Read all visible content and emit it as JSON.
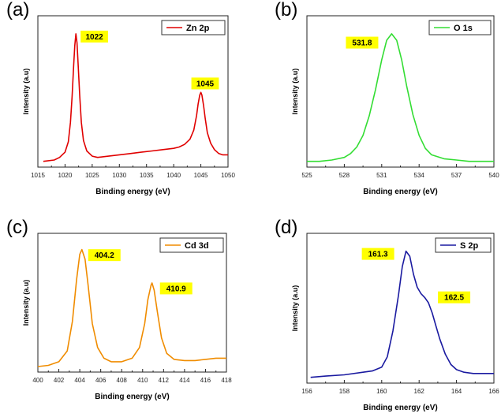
{
  "chart_data": [
    {
      "panel": "(a)",
      "type": "line",
      "title": "",
      "xlabel": "Binding energy (eV)",
      "ylabel": "Intensity (a.u)",
      "xlim": [
        1015,
        1050
      ],
      "xticks": [
        1015,
        1020,
        1025,
        1030,
        1035,
        1040,
        1045,
        1050
      ],
      "grid": false,
      "legend_position": "top-right",
      "series": [
        {
          "name": "Zn 2p",
          "color": "#e00000",
          "x": [
            1016,
            1018,
            1019,
            1020,
            1020.6,
            1021.0,
            1021.3,
            1021.6,
            1021.8,
            1022.0,
            1022.2,
            1022.4,
            1022.7,
            1023.0,
            1023.4,
            1024.0,
            1025,
            1026,
            1028,
            1030,
            1032,
            1034,
            1036,
            1038,
            1040,
            1041,
            1042,
            1043,
            1043.7,
            1044.2,
            1044.5,
            1044.8,
            1045.0,
            1045.2,
            1045.5,
            1045.8,
            1046.2,
            1046.8,
            1047.5,
            1048.3,
            1049,
            1050
          ],
          "y": [
            0.02,
            0.03,
            0.05,
            0.09,
            0.17,
            0.32,
            0.52,
            0.76,
            0.91,
            1.0,
            0.93,
            0.77,
            0.53,
            0.32,
            0.18,
            0.1,
            0.06,
            0.05,
            0.06,
            0.07,
            0.08,
            0.09,
            0.1,
            0.11,
            0.12,
            0.13,
            0.15,
            0.19,
            0.26,
            0.37,
            0.46,
            0.53,
            0.55,
            0.53,
            0.45,
            0.35,
            0.24,
            0.16,
            0.11,
            0.08,
            0.07,
            0.07
          ]
        }
      ],
      "annotations": [
        {
          "text": "1022",
          "x": 1022
        },
        {
          "text": "1045",
          "x": 1045
        }
      ]
    },
    {
      "panel": "(b)",
      "type": "line",
      "title": "",
      "xlabel": "Binding energy (eV)",
      "ylabel": "Intensity (a.u)",
      "xlim": [
        525,
        540
      ],
      "xticks": [
        525,
        528,
        531,
        534,
        537,
        540
      ],
      "grid": false,
      "legend_position": "top-right",
      "series": [
        {
          "name": "O 1s",
          "color": "#33dd33",
          "x": [
            525,
            526,
            527,
            528,
            528.5,
            529,
            529.5,
            530,
            530.5,
            531,
            531.4,
            531.8,
            532.2,
            532.6,
            533,
            533.5,
            534,
            534.5,
            535,
            536,
            537,
            538,
            539,
            540
          ],
          "y": [
            0.02,
            0.02,
            0.03,
            0.05,
            0.08,
            0.13,
            0.22,
            0.37,
            0.57,
            0.8,
            0.95,
            1.0,
            0.95,
            0.8,
            0.6,
            0.38,
            0.22,
            0.12,
            0.07,
            0.04,
            0.03,
            0.02,
            0.02,
            0.02
          ]
        }
      ],
      "annotations": [
        {
          "text": "531.8",
          "x": 531.8
        }
      ]
    },
    {
      "panel": "(c)",
      "type": "line",
      "title": "",
      "xlabel": "Binding energy (eV)",
      "ylabel": "Intensity (a.u)",
      "xlim": [
        400,
        418
      ],
      "xticks": [
        400,
        402,
        404,
        406,
        408,
        410,
        412,
        414,
        416,
        418
      ],
      "grid": false,
      "legend_position": "top-right",
      "series": [
        {
          "name": "Cd 3d",
          "color": "#f08c00",
          "x": [
            400,
            401,
            402,
            402.8,
            403.3,
            403.7,
            404.0,
            404.2,
            404.5,
            404.8,
            405.2,
            405.7,
            406.3,
            407,
            408,
            409,
            409.7,
            410.2,
            410.5,
            410.8,
            410.9,
            411.1,
            411.4,
            411.8,
            412.3,
            413,
            414,
            415,
            416,
            417,
            418
          ],
          "y": [
            0.02,
            0.03,
            0.06,
            0.15,
            0.4,
            0.75,
            0.96,
            1.0,
            0.92,
            0.7,
            0.38,
            0.18,
            0.09,
            0.06,
            0.06,
            0.09,
            0.18,
            0.38,
            0.58,
            0.7,
            0.72,
            0.66,
            0.48,
            0.26,
            0.13,
            0.08,
            0.07,
            0.07,
            0.08,
            0.09,
            0.09
          ]
        }
      ],
      "annotations": [
        {
          "text": "404.2",
          "x": 404.2
        },
        {
          "text": "410.9",
          "x": 410.9
        }
      ]
    },
    {
      "panel": "(d)",
      "type": "line",
      "title": "",
      "xlabel": "Binding energy (eV)",
      "ylabel": "Intensity (a.u)",
      "xlim": [
        156,
        166
      ],
      "xticks": [
        156,
        158,
        160,
        162,
        164,
        166
      ],
      "grid": false,
      "legend_position": "top-right",
      "series": [
        {
          "name": "S 2p",
          "color": "#1a1aa0",
          "x": [
            156.2,
            157,
            158,
            159,
            159.5,
            160.0,
            160.3,
            160.6,
            160.9,
            161.1,
            161.3,
            161.5,
            161.7,
            161.9,
            162.1,
            162.3,
            162.5,
            162.7,
            162.9,
            163.1,
            163.4,
            163.7,
            164.0,
            164.4,
            164.9,
            165.5,
            166
          ],
          "y": [
            0.02,
            0.03,
            0.04,
            0.06,
            0.07,
            0.1,
            0.18,
            0.38,
            0.66,
            0.88,
            1.0,
            0.96,
            0.82,
            0.72,
            0.67,
            0.64,
            0.6,
            0.52,
            0.42,
            0.32,
            0.2,
            0.12,
            0.08,
            0.06,
            0.05,
            0.05,
            0.05
          ]
        }
      ],
      "annotations": [
        {
          "text": "161.3",
          "x": 161.3
        },
        {
          "text": "162.5",
          "x": 162.5
        }
      ]
    }
  ]
}
